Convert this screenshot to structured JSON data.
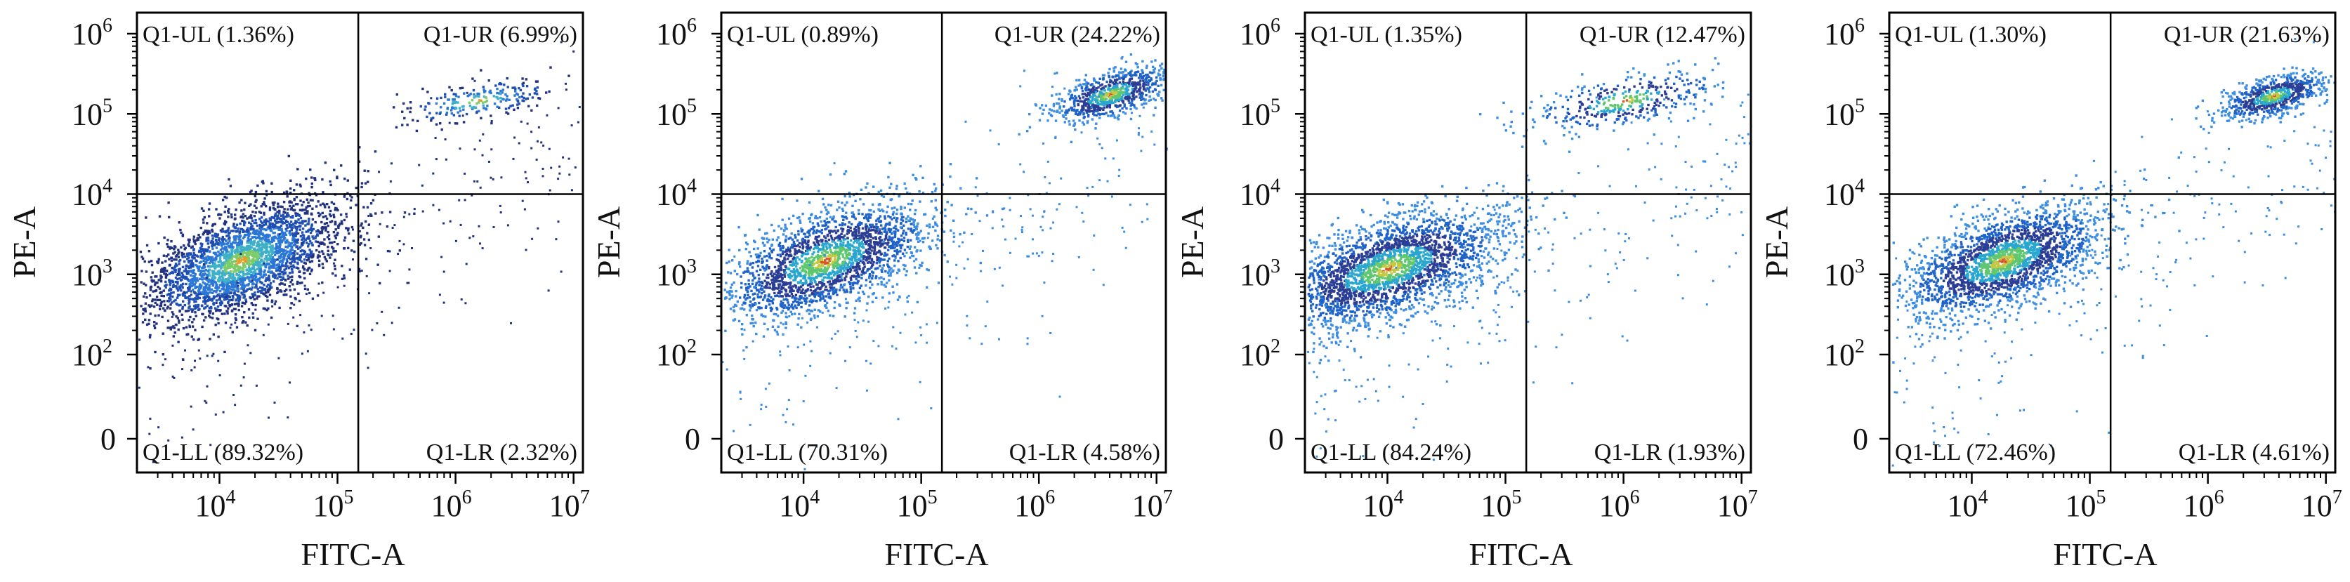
{
  "chart_data": [
    {
      "type": "scatter",
      "xlabel": "FITC-A",
      "ylabel": "PE-A",
      "x_scale": "log",
      "y_scale": "log",
      "x_ticks": [
        "10^4",
        "10^5",
        "10^6",
        "10^7"
      ],
      "y_ticks": [
        "0",
        "10^2",
        "10^3",
        "10^4",
        "10^5",
        "10^6"
      ],
      "quadrants": {
        "UL": {
          "label": "Q1-UL",
          "percent": "1.36%"
        },
        "UR": {
          "label": "Q1-UR",
          "percent": "6.99%"
        },
        "LL": {
          "label": "Q1-LL",
          "percent": "89.32%"
        },
        "LR": {
          "label": "Q1-LR",
          "percent": "2.32%"
        }
      },
      "gate": {
        "x": 150000,
        "y": 10000
      },
      "populations": [
        {
          "name": "",
          "center": [
            15000,
            1500
          ],
          "spread": [
            0.42,
            0.4
          ],
          "share": 0.89
        },
        {
          "name": "",
          "center": [
            1500000,
            150000
          ],
          "spread": [
            0.35,
            0.15
          ],
          "share": 0.07
        }
      ],
      "colormap": "density-blue",
      "grid": false
    },
    {
      "type": "scatter",
      "xlabel": "FITC-A",
      "ylabel": "PE-A",
      "x_scale": "log",
      "y_scale": "log",
      "x_ticks": [
        "10^4",
        "10^5",
        "10^6",
        "10^7"
      ],
      "y_ticks": [
        "0",
        "10^2",
        "10^3",
        "10^4",
        "10^5",
        "10^6"
      ],
      "quadrants": {
        "UL": {
          "label": "Q1-UL",
          "percent": "0.89%"
        },
        "UR": {
          "label": "Q1-UR",
          "percent": "24.22%"
        },
        "LL": {
          "label": "Q1-LL",
          "percent": "70.31%"
        },
        "LR": {
          "label": "Q1-LR",
          "percent": "4.58%"
        }
      },
      "gate": {
        "x": 150000,
        "y": 10000
      },
      "populations": [
        {
          "name": "",
          "center": [
            15000,
            1500
          ],
          "spread": [
            0.45,
            0.38
          ],
          "share": 0.7
        },
        {
          "name": "",
          "center": [
            4000000,
            180000
          ],
          "spread": [
            0.25,
            0.18
          ],
          "share": 0.24
        }
      ],
      "colormap": "density-light",
      "grid": false
    },
    {
      "type": "scatter",
      "xlabel": "FITC-A",
      "ylabel": "PE-A",
      "x_scale": "log",
      "y_scale": "log",
      "x_ticks": [
        "10^4",
        "10^5",
        "10^6",
        "10^7"
      ],
      "y_ticks": [
        "0",
        "10^2",
        "10^3",
        "10^4",
        "10^5",
        "10^6"
      ],
      "quadrants": {
        "UL": {
          "label": "Q1-UL",
          "percent": "1.35%"
        },
        "UR": {
          "label": "Q1-UR",
          "percent": "12.47%"
        },
        "LL": {
          "label": "Q1-LL",
          "percent": "84.24%"
        },
        "LR": {
          "label": "Q1-LR",
          "percent": "1.93%"
        }
      },
      "gate": {
        "x": 150000,
        "y": 10000
      },
      "populations": [
        {
          "name": "",
          "center": [
            10000,
            1200
          ],
          "spread": [
            0.48,
            0.38
          ],
          "share": 0.84
        },
        {
          "name": "",
          "center": [
            1000000,
            150000
          ],
          "spread": [
            0.4,
            0.2
          ],
          "share": 0.12
        }
      ],
      "colormap": "density-light",
      "grid": false
    },
    {
      "type": "scatter",
      "xlabel": "FITC-A",
      "ylabel": "PE-A",
      "x_scale": "log",
      "y_scale": "log",
      "x_ticks": [
        "10^4",
        "10^5",
        "10^6",
        "10^7"
      ],
      "y_ticks": [
        "0",
        "10^2",
        "10^3",
        "10^4",
        "10^5",
        "10^6"
      ],
      "quadrants": {
        "UL": {
          "label": "Q1-UL",
          "percent": "1.30%"
        },
        "UR": {
          "label": "Q1-UR",
          "percent": "21.63%"
        },
        "LL": {
          "label": "Q1-LL",
          "percent": "72.46%"
        },
        "LR": {
          "label": "Q1-LR",
          "percent": "4.61%"
        }
      },
      "gate": {
        "x": 150000,
        "y": 10000
      },
      "populations": [
        {
          "name": "",
          "center": [
            18000,
            1500
          ],
          "spread": [
            0.42,
            0.36
          ],
          "share": 0.72
        },
        {
          "name": "",
          "center": [
            3500000,
            170000
          ],
          "spread": [
            0.22,
            0.15
          ],
          "share": 0.22
        }
      ],
      "colormap": "density-light",
      "grid": false
    }
  ]
}
